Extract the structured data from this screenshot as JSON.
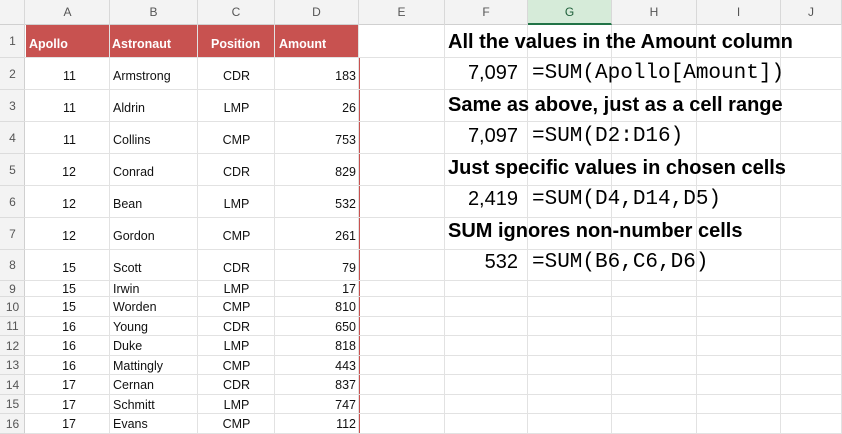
{
  "columns": [
    "A",
    "B",
    "C",
    "D",
    "E",
    "F",
    "G",
    "H",
    "I",
    "J"
  ],
  "selected_column": "G",
  "rows": [
    "1",
    "2",
    "3",
    "4",
    "5",
    "6",
    "7",
    "8",
    "9",
    "10",
    "11",
    "12",
    "13",
    "14",
    "15",
    "16"
  ],
  "table": {
    "headers": [
      "Apollo",
      "Astronaut",
      "Position",
      "Amount"
    ],
    "header_color": "#c85250",
    "rows": [
      {
        "apollo": "11",
        "astronaut": "Armstrong",
        "position": "CDR",
        "amount": "183"
      },
      {
        "apollo": "11",
        "astronaut": "Aldrin",
        "position": "LMP",
        "amount": "26"
      },
      {
        "apollo": "11",
        "astronaut": "Collins",
        "position": "CMP",
        "amount": "753"
      },
      {
        "apollo": "12",
        "astronaut": "Conrad",
        "position": "CDR",
        "amount": "829"
      },
      {
        "apollo": "12",
        "astronaut": "Bean",
        "position": "LMP",
        "amount": "532"
      },
      {
        "apollo": "12",
        "astronaut": "Gordon",
        "position": "CMP",
        "amount": "261"
      },
      {
        "apollo": "15",
        "astronaut": "Scott",
        "position": "CDR",
        "amount": "79"
      },
      {
        "apollo": "15",
        "astronaut": "Irwin",
        "position": "LMP",
        "amount": "17"
      },
      {
        "apollo": "15",
        "astronaut": "Worden",
        "position": "CMP",
        "amount": "810"
      },
      {
        "apollo": "16",
        "astronaut": "Young",
        "position": "CDR",
        "amount": "650"
      },
      {
        "apollo": "16",
        "astronaut": "Duke",
        "position": "LMP",
        "amount": "818"
      },
      {
        "apollo": "16",
        "astronaut": "Mattingly",
        "position": "CMP",
        "amount": "443"
      },
      {
        "apollo": "17",
        "astronaut": "Cernan",
        "position": "CDR",
        "amount": "837"
      },
      {
        "apollo": "17",
        "astronaut": "Schmitt",
        "position": "LMP",
        "amount": "747"
      },
      {
        "apollo": "17",
        "astronaut": "Evans",
        "position": "CMP",
        "amount": "112"
      }
    ]
  },
  "notes": [
    {
      "heading": "All the values in the Amount column",
      "value": "7,097",
      "formula": "=SUM(Apollo[Amount])"
    },
    {
      "heading": "Same as above, just as a cell range",
      "value": "7,097",
      "formula": "=SUM(D2:D16)"
    },
    {
      "heading": "Just specific values in chosen cells",
      "value": "2,419",
      "formula": "=SUM(D4,D14,D5)"
    },
    {
      "heading": "SUM ignores non-number cells",
      "value": "532",
      "formula": "=SUM(B6,C6,D6)"
    }
  ]
}
